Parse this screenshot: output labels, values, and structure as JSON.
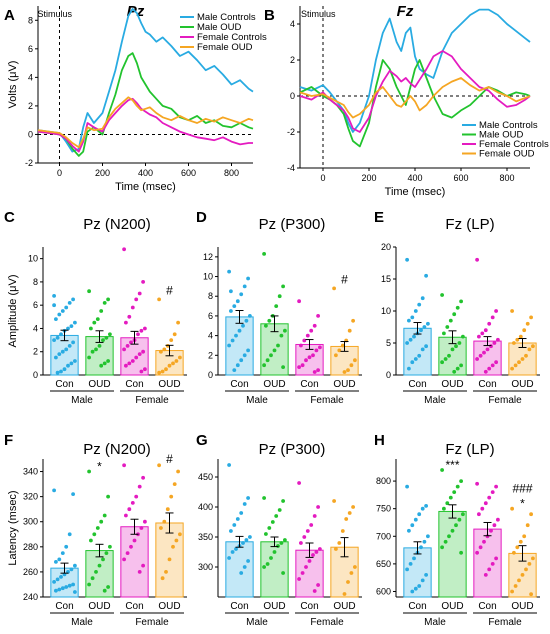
{
  "colors": {
    "male_controls": "#29ABE2",
    "male_oud": "#22C32E",
    "female_controls": "#E41BC0",
    "female_oud": "#F5A623"
  },
  "chart_data": [
    {
      "panel": "A",
      "type": "line",
      "title": "Pz",
      "xlabel": "Time (msec)",
      "ylabel": "Volts (μV)",
      "xlim": [
        -100,
        900
      ],
      "ylim": [
        -2,
        9
      ],
      "xticks": [
        0,
        200,
        400,
        600,
        800
      ],
      "yticks": [
        -2,
        0,
        2,
        4,
        6,
        8
      ],
      "annotation": "Stimulus",
      "legend": "top-right",
      "x": [
        -100,
        -50,
        0,
        30,
        60,
        90,
        110,
        130,
        160,
        200,
        230,
        260,
        290,
        320,
        340,
        360,
        380,
        400,
        420,
        450,
        480,
        520,
        560,
        600,
        640,
        680,
        720,
        760,
        800,
        840,
        880,
        900
      ],
      "series": [
        {
          "name": "Male Controls",
          "values": [
            0.3,
            0.2,
            0.1,
            -0.5,
            -1.2,
            -1.0,
            0.5,
            1.5,
            0.8,
            1.5,
            3.0,
            4.5,
            6.5,
            8.3,
            8.8,
            8.5,
            7.8,
            7.2,
            7.0,
            6.5,
            6.8,
            6.2,
            5.5,
            5.8,
            5.2,
            4.5,
            4.8,
            4.2,
            3.5,
            3.8,
            3.2,
            3.0
          ]
        },
        {
          "name": "Male OUD",
          "values": [
            0.2,
            0.1,
            0.0,
            -0.3,
            -1.0,
            -1.5,
            -1.2,
            0.2,
            0.5,
            0.0,
            1.5,
            2.8,
            4.5,
            5.5,
            5.7,
            5.0,
            4.0,
            3.5,
            3.0,
            2.5,
            2.0,
            1.8,
            1.2,
            1.0,
            1.3,
            0.8,
            1.0,
            0.6,
            0.5,
            0.8,
            0.5,
            0.4
          ]
        },
        {
          "name": "Female Controls",
          "values": [
            0.2,
            0.1,
            0.0,
            -0.3,
            -0.8,
            -1.2,
            -0.5,
            0.8,
            0.5,
            0.2,
            1.0,
            1.5,
            2.0,
            2.4,
            2.5,
            2.2,
            1.8,
            1.6,
            1.4,
            1.2,
            0.8,
            0.5,
            0.2,
            0.0,
            -0.2,
            -0.3,
            -0.4,
            -0.2,
            -0.5,
            -0.7,
            -0.6,
            -0.6
          ]
        },
        {
          "name": "Female OUD",
          "values": [
            0.3,
            0.2,
            0.1,
            -0.2,
            -0.6,
            -0.9,
            -0.3,
            0.5,
            0.3,
            0.4,
            1.2,
            1.8,
            2.2,
            2.6,
            2.4,
            2.0,
            1.7,
            1.8,
            1.9,
            1.5,
            1.2,
            1.0,
            1.3,
            1.0,
            0.8,
            1.1,
            0.9,
            1.2,
            1.0,
            0.8,
            1.1,
            1.0
          ]
        }
      ]
    },
    {
      "panel": "B",
      "type": "line",
      "title": "Fz",
      "xlabel": "Time (msec)",
      "ylabel": "",
      "xlim": [
        -100,
        900
      ],
      "ylim": [
        -4,
        5
      ],
      "xticks": [
        0,
        200,
        400,
        600,
        800
      ],
      "yticks": [
        -4,
        -2,
        0,
        2,
        4
      ],
      "annotation": "Stimulus",
      "legend": "bottom-right",
      "x": [
        -100,
        -50,
        0,
        30,
        60,
        90,
        110,
        130,
        160,
        200,
        230,
        260,
        290,
        320,
        340,
        360,
        380,
        400,
        420,
        450,
        480,
        520,
        560,
        600,
        640,
        680,
        720,
        760,
        800,
        840,
        880,
        900
      ],
      "series": [
        {
          "name": "Male Controls",
          "values": [
            0.5,
            0.3,
            0.6,
            0.2,
            -0.3,
            -0.8,
            -1.5,
            -2.0,
            -1.5,
            0.0,
            2.0,
            3.5,
            4.3,
            3.0,
            2.5,
            3.5,
            3.8,
            2.2,
            1.5,
            1.2,
            1.0,
            2.5,
            3.5,
            4.0,
            4.5,
            4.8,
            4.8,
            4.5,
            4.0,
            3.6,
            3.2,
            3.0
          ]
        },
        {
          "name": "Male OUD",
          "values": [
            0.2,
            0.5,
            0.0,
            -0.2,
            -0.5,
            -1.0,
            -1.8,
            -2.5,
            -2.8,
            -1.5,
            0.5,
            2.0,
            1.5,
            0.5,
            0.0,
            -0.5,
            0.5,
            1.5,
            2.0,
            1.0,
            0.0,
            -1.0,
            -1.2,
            -0.8,
            -0.5,
            0.0,
            0.5,
            0.3,
            0.0,
            0.2,
            0.1,
            0.0
          ]
        },
        {
          "name": "Female Controls",
          "values": [
            0.0,
            -0.2,
            0.2,
            -0.2,
            -0.5,
            -0.8,
            -1.2,
            -1.8,
            -2.0,
            -1.2,
            0.0,
            0.8,
            1.4,
            1.1,
            0.8,
            1.0,
            0.7,
            0.5,
            0.9,
            1.5,
            2.2,
            2.5,
            2.2,
            1.5,
            1.0,
            0.5,
            0.3,
            -0.2,
            -0.6,
            -0.5,
            -0.2,
            0.0
          ]
        },
        {
          "name": "Female OUD",
          "values": [
            0.2,
            0.0,
            0.1,
            -0.1,
            -0.3,
            -0.5,
            -0.9,
            -1.2,
            -1.0,
            -0.5,
            0.2,
            0.5,
            0.0,
            -0.5,
            -0.6,
            -0.3,
            0.0,
            -0.3,
            -0.8,
            -0.5,
            0.0,
            0.5,
            0.8,
            1.0,
            0.6,
            0.3,
            0.5,
            0.2,
            0.0,
            -0.3,
            -0.1,
            0.0
          ]
        }
      ]
    },
    {
      "panel": "C",
      "type": "bar",
      "title": "Pz (N200)",
      "ylabel": "Amplitude (μV)",
      "ylim": [
        0,
        11
      ],
      "yticks": [
        0,
        2,
        4,
        6,
        8,
        10
      ],
      "categories": [
        "Con",
        "OUD",
        "Con",
        "OUD"
      ],
      "groups": [
        "Male",
        "Female"
      ],
      "values": [
        3.4,
        3.3,
        3.2,
        2.1
      ],
      "errors": [
        0.45,
        0.5,
        0.55,
        0.45
      ],
      "annotations": [
        "",
        "",
        "",
        "#"
      ],
      "points": [
        [
          6.8,
          6.5,
          6.2,
          5.8,
          5.5,
          5.2,
          4.8,
          4.5,
          4.2,
          4.0,
          3.8,
          3.5,
          3.2,
          3.0,
          2.8,
          2.5,
          2.2,
          2.0,
          1.8,
          1.5,
          1.2,
          1.0,
          0.8,
          0.5,
          0.3,
          0.2,
          6.0
        ],
        [
          7.2,
          6.5,
          6.2,
          5.5,
          4.8,
          4.5,
          4.0,
          3.5,
          3.2,
          3.0,
          2.5,
          2.2,
          2.0,
          1.5,
          1.2,
          1.0,
          0.8
        ],
        [
          10.8,
          8.0,
          7.0,
          6.5,
          5.8,
          5.0,
          4.5,
          4.0,
          3.8,
          3.5,
          3.0,
          2.8,
          2.5,
          2.2,
          2.0,
          1.8,
          1.5,
          1.2,
          1.0,
          0.8,
          0.5,
          0.3
        ],
        [
          6.5,
          4.5,
          3.5,
          3.0,
          2.5,
          2.2,
          2.0,
          1.5,
          1.2,
          1.0,
          0.8,
          0.5,
          0.3,
          0.2
        ]
      ]
    },
    {
      "panel": "D",
      "type": "bar",
      "title": "Pz (P300)",
      "ylabel": "",
      "ylim": [
        0,
        13
      ],
      "yticks": [
        0,
        2,
        4,
        6,
        8,
        10,
        12
      ],
      "categories": [
        "Con",
        "OUD",
        "Con",
        "OUD"
      ],
      "groups": [
        "Male",
        "Female"
      ],
      "values": [
        5.9,
        5.2,
        3.1,
        2.9
      ],
      "errors": [
        0.65,
        0.8,
        0.5,
        0.5
      ],
      "annotations": [
        "",
        "",
        "",
        "#"
      ],
      "points": [
        [
          10.5,
          9.8,
          9.0,
          8.2,
          7.5,
          7.0,
          6.5,
          6.0,
          5.5,
          5.0,
          4.5,
          4.0,
          3.5,
          3.0,
          2.5,
          2.0,
          1.5,
          1.0,
          0.5,
          8.5
        ],
        [
          12.3,
          9.0,
          8.0,
          7.0,
          6.0,
          5.5,
          5.0,
          4.5,
          4.0,
          3.0,
          2.5,
          2.0,
          1.5,
          1.0,
          0.8
        ],
        [
          7.5,
          6.0,
          5.0,
          4.5,
          4.0,
          3.5,
          3.0,
          2.8,
          2.5,
          2.0,
          1.8,
          1.5,
          1.0,
          0.8,
          0.5,
          0.3
        ],
        [
          8.8,
          5.5,
          4.5,
          3.5,
          3.0,
          2.5,
          2.0,
          1.5,
          1.0,
          0.5,
          0.3
        ]
      ]
    },
    {
      "panel": "E",
      "type": "bar",
      "title": "Fz (LP)",
      "ylabel": "",
      "ylim": [
        0,
        20
      ],
      "yticks": [
        0,
        5,
        10,
        15,
        20
      ],
      "categories": [
        "Con",
        "OUD",
        "Con",
        "OUD"
      ],
      "groups": [
        "Male",
        "Female"
      ],
      "values": [
        7.3,
        5.9,
        5.3,
        5.0
      ],
      "errors": [
        0.9,
        1.0,
        0.7,
        0.7
      ],
      "annotations": [
        "",
        "",
        "",
        ""
      ],
      "points": [
        [
          18.0,
          15.5,
          12.0,
          11.0,
          10.0,
          9.0,
          8.5,
          8.0,
          7.5,
          7.0,
          6.5,
          6.0,
          5.5,
          5.0,
          4.5,
          4.0,
          3.0,
          2.5,
          2.0,
          1.0
        ],
        [
          12.5,
          11.5,
          10.5,
          9.5,
          8.5,
          7.5,
          6.5,
          6.0,
          5.0,
          4.5,
          4.0,
          3.0,
          2.5,
          2.0,
          1.5,
          1.0,
          0.5
        ],
        [
          18.0,
          10.0,
          9.0,
          8.0,
          7.0,
          6.5,
          6.0,
          5.5,
          5.0,
          4.5,
          4.0,
          3.5,
          3.0,
          2.5,
          2.0,
          1.5,
          1.0,
          0.5
        ],
        [
          10.0,
          9.0,
          8.0,
          7.0,
          6.0,
          5.5,
          5.0,
          4.5,
          4.0,
          3.0,
          2.5,
          2.0,
          1.5,
          1.0
        ]
      ]
    },
    {
      "panel": "F",
      "type": "bar",
      "title": "Pz (N200)",
      "ylabel": "Latency (msec)",
      "ylim": [
        240,
        350
      ],
      "yticks": [
        240,
        260,
        280,
        300,
        320,
        340
      ],
      "categories": [
        "Con",
        "OUD",
        "Con",
        "OUD"
      ],
      "groups": [
        "Male",
        "Female"
      ],
      "values": [
        263,
        277,
        296,
        299
      ],
      "errors": [
        4,
        5,
        6,
        8
      ],
      "annotations": [
        "",
        "*",
        "",
        "#"
      ],
      "points": [
        [
          325,
          322,
          290,
          280,
          275,
          270,
          268,
          265,
          262,
          260,
          258,
          256,
          254,
          252,
          250,
          249,
          248,
          247,
          246,
          245,
          244
        ],
        [
          340,
          320,
          305,
          300,
          295,
          290,
          285,
          280,
          275,
          270,
          265,
          260,
          255,
          250,
          248,
          245
        ],
        [
          345,
          335,
          328,
          320,
          315,
          310,
          305,
          300,
          295,
          290,
          285,
          280,
          275,
          270,
          265,
          260
        ],
        [
          345,
          340,
          330,
          320,
          310,
          300,
          295,
          290,
          285,
          280,
          270,
          260,
          255
        ]
      ]
    },
    {
      "panel": "G",
      "type": "bar",
      "title": "Pz (P300)",
      "ylabel": "",
      "ylim": [
        250,
        480
      ],
      "yticks": [
        300,
        350,
        400,
        450
      ],
      "categories": [
        "Con",
        "OUD",
        "Con",
        "OUD"
      ],
      "groups": [
        "Male",
        "Female"
      ],
      "values": [
        342,
        342,
        328,
        333
      ],
      "errors": [
        9,
        8,
        12,
        16
      ],
      "annotations": [
        "",
        "",
        "",
        ""
      ],
      "points": [
        [
          470,
          415,
          405,
          390,
          380,
          370,
          360,
          350,
          345,
          340,
          335,
          330,
          325,
          315,
          310,
          300,
          290
        ],
        [
          415,
          410,
          395,
          385,
          375,
          365,
          355,
          345,
          340,
          335,
          325,
          315,
          305,
          300,
          290
        ],
        [
          440,
          400,
          385,
          370,
          360,
          350,
          340,
          330,
          325,
          320,
          310,
          300,
          290,
          280,
          270,
          260
        ],
        [
          410,
          400,
          390,
          380,
          360,
          340,
          330,
          300,
          290,
          275,
          255
        ]
      ]
    },
    {
      "panel": "H",
      "type": "bar",
      "title": "Fz (LP)",
      "ylabel": "",
      "ylim": [
        590,
        840
      ],
      "yticks": [
        600,
        650,
        700,
        750,
        800
      ],
      "categories": [
        "Con",
        "OUD",
        "Con",
        "OUD"
      ],
      "groups": [
        "Male",
        "Female"
      ],
      "values": [
        679,
        745,
        713,
        669
      ],
      "errors": [
        11,
        12,
        12,
        14
      ],
      "annotations": [
        "",
        "***",
        "",
        "###\n*"
      ],
      "points": [
        [
          790,
          755,
          750,
          740,
          730,
          720,
          710,
          700,
          690,
          680,
          670,
          660,
          650,
          640,
          630,
          620,
          610,
          605,
          600
        ],
        [
          820,
          800,
          790,
          780,
          770,
          760,
          750,
          740,
          730,
          720,
          710,
          700,
          690,
          680,
          670
        ],
        [
          795,
          790,
          780,
          770,
          760,
          750,
          740,
          730,
          720,
          710,
          700,
          690,
          680,
          670,
          660,
          650,
          640,
          630
        ],
        [
          750,
          740,
          720,
          700,
          690,
          680,
          670,
          660,
          650,
          640,
          630,
          620,
          610,
          600,
          595
        ]
      ]
    }
  ]
}
